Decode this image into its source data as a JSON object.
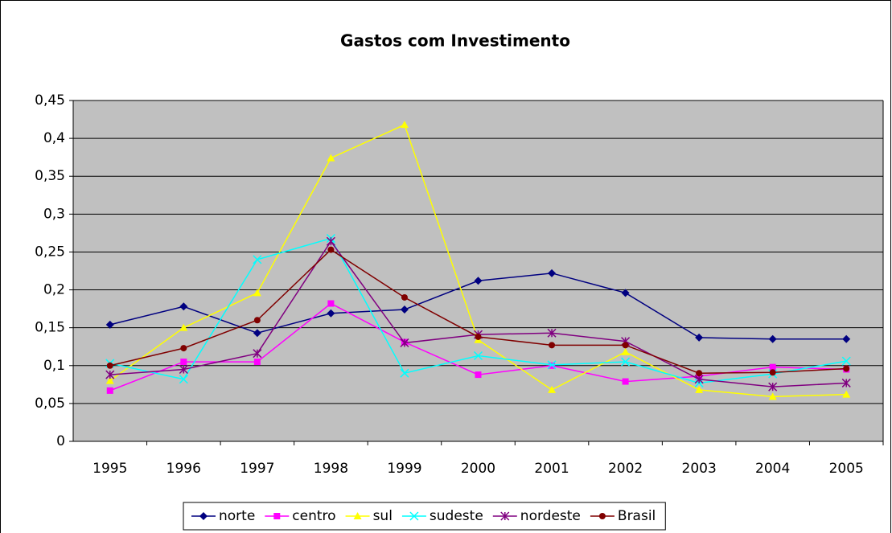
{
  "chart_data": {
    "type": "line",
    "title": "Gastos com Investimento",
    "categories": [
      "1995",
      "1996",
      "1997",
      "1998",
      "1999",
      "2000",
      "2001",
      "2002",
      "2003",
      "2004",
      "2005"
    ],
    "series": [
      {
        "name": "norte",
        "color": "#000080",
        "marker": "diamond",
        "values": [
          0.154,
          0.178,
          0.143,
          0.169,
          0.174,
          0.212,
          0.222,
          0.196,
          0.137,
          0.135,
          0.135
        ]
      },
      {
        "name": "centro",
        "color": "#ff00ff",
        "marker": "square",
        "values": [
          0.067,
          0.105,
          0.105,
          0.182,
          0.131,
          0.088,
          0.1,
          0.079,
          0.086,
          0.098,
          0.095
        ]
      },
      {
        "name": "sul",
        "color": "#ffff00",
        "marker": "triangle",
        "values": [
          0.08,
          0.15,
          0.196,
          0.374,
          0.418,
          0.134,
          0.068,
          0.118,
          0.068,
          0.059,
          0.062
        ]
      },
      {
        "name": "sudeste",
        "color": "#00ffff",
        "marker": "x",
        "values": [
          0.103,
          0.082,
          0.24,
          0.268,
          0.09,
          0.113,
          0.101,
          0.105,
          0.077,
          0.089,
          0.106
        ]
      },
      {
        "name": "nordeste",
        "color": "#800080",
        "marker": "asterisk",
        "values": [
          0.088,
          0.095,
          0.116,
          0.264,
          0.13,
          0.141,
          0.143,
          0.132,
          0.082,
          0.072,
          0.077
        ]
      },
      {
        "name": "Brasil",
        "color": "#800000",
        "marker": "circle",
        "values": [
          0.1,
          0.123,
          0.16,
          0.253,
          0.19,
          0.138,
          0.127,
          0.127,
          0.09,
          0.091,
          0.096
        ]
      }
    ],
    "ylim": [
      0,
      0.45
    ],
    "yticks": [
      0,
      {
        "value": 0.05,
        "label": "0,05"
      },
      {
        "value": 0.1,
        "label": "0,1"
      },
      {
        "value": 0.15,
        "label": "0,15"
      },
      {
        "value": 0.2,
        "label": "0,2"
      },
      {
        "value": 0.25,
        "label": "0,25"
      },
      {
        "value": 0.3,
        "label": "0,3"
      },
      {
        "value": 0.35,
        "label": "0,35"
      },
      {
        "value": 0.4,
        "label": "0,4"
      },
      {
        "value": 0.45,
        "label": "0,45"
      }
    ],
    "grid": true,
    "plot_background": "#c0c0c0",
    "legend": "bottom"
  }
}
